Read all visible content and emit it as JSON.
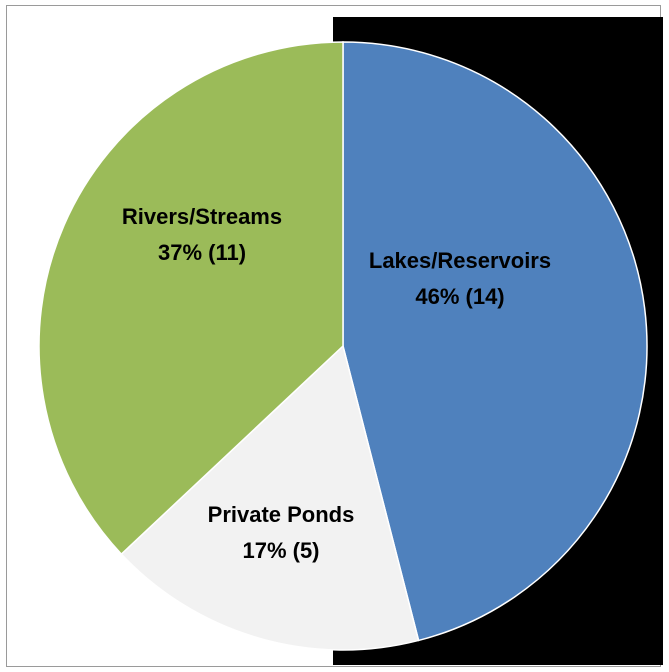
{
  "chart_data": {
    "type": "pie",
    "title": "",
    "slices": [
      {
        "label": "Lakes/Reservoirs",
        "percent_label": "46% (14)",
        "value": 14,
        "percent": 46,
        "color": "#4f81bd"
      },
      {
        "label": "Private Ponds",
        "percent_label": "17% (5)",
        "value": 5,
        "percent": 17,
        "color": "#f2f2f2"
      },
      {
        "label": "Rivers/Streams",
        "percent_label": "37% (11)",
        "value": 11,
        "percent": 37,
        "color": "#9bbb59"
      }
    ],
    "start_angle_deg": 0,
    "direction": "clockwise",
    "slice_border_color": "#ffffff"
  }
}
